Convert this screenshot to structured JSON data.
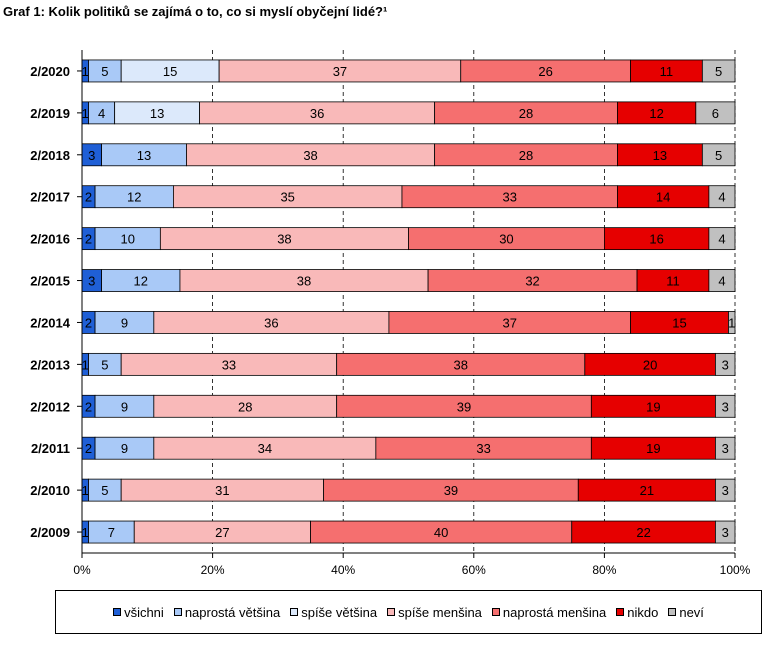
{
  "chart_data": {
    "type": "bar",
    "orientation": "horizontal",
    "stacked": true,
    "percent": true,
    "title": "Graf 1: Kolik politiků se zajímá o to, co si myslí obyčejní lidé?¹",
    "categories": [
      "2/2020",
      "2/2019",
      "2/2018",
      "2/2017",
      "2/2016",
      "2/2015",
      "2/2014",
      "2/2013",
      "2/2012",
      "2/2011",
      "2/2010",
      "2/2009"
    ],
    "series": [
      {
        "name": "všichni",
        "color": "#1f5fd6",
        "values": [
          1,
          1,
          3,
          2,
          2,
          3,
          2,
          1,
          2,
          2,
          1,
          1
        ],
        "labels": [
          "1",
          "1",
          "3",
          "2",
          "2",
          "3",
          "2",
          "1",
          "2",
          "2",
          "1",
          "1"
        ]
      },
      {
        "name": "naprostá většina",
        "color": "#a9c9f7",
        "values": [
          5,
          4,
          13,
          12,
          10,
          12,
          9,
          5,
          9,
          9,
          5,
          7
        ],
        "labels": [
          "5",
          "4",
          "13",
          "12",
          "10",
          "12",
          "9",
          "5",
          "9",
          "9",
          "5",
          "7"
        ]
      },
      {
        "name": "spíše většina",
        "color": "#dce9fb",
        "values": [
          15,
          13,
          0,
          0,
          0,
          0,
          0,
          0,
          0,
          0,
          0,
          0
        ],
        "labels": [
          "15",
          "13",
          "",
          "",
          "",
          "",
          "",
          "",
          "",
          "",
          "",
          ""
        ]
      },
      {
        "name": "spíše menšina",
        "color": "#f9b9b9",
        "values": [
          37,
          36,
          38,
          35,
          38,
          38,
          36,
          33,
          28,
          34,
          31,
          27
        ],
        "labels": [
          "37",
          "36",
          "38",
          "35",
          "38",
          "38",
          "36",
          "33",
          "28",
          "34",
          "31",
          "27"
        ]
      },
      {
        "name": "naprostá menšina",
        "color": "#f56f6f",
        "values": [
          26,
          28,
          28,
          33,
          30,
          32,
          37,
          38,
          39,
          33,
          39,
          40
        ],
        "labels": [
          "26",
          "28",
          "28",
          "33",
          "30",
          "32",
          "37",
          "38",
          "39",
          "33",
          "39",
          "40"
        ]
      },
      {
        "name": "nikdo",
        "color": "#e60000",
        "values": [
          11,
          12,
          13,
          14,
          16,
          11,
          15,
          20,
          19,
          19,
          21,
          22
        ],
        "labels": [
          "11",
          "12",
          "13",
          "14",
          "16",
          "11",
          "15",
          "20",
          "19",
          "19",
          "21",
          "22"
        ]
      },
      {
        "name": "neví",
        "color": "#c0c0c0",
        "values": [
          5,
          6,
          5,
          4,
          4,
          4,
          1,
          3,
          3,
          3,
          3,
          3
        ],
        "labels": [
          "5",
          "6",
          "5",
          "4",
          "4",
          "4",
          "1",
          "3",
          "3",
          "3",
          "3",
          "3"
        ]
      }
    ],
    "xlim": [
      0,
      100
    ],
    "x_ticks": [
      "0%",
      "20%",
      "40%",
      "60%",
      "80%",
      "100%"
    ],
    "grid": "vertical dashed",
    "legend_position": "bottom"
  }
}
